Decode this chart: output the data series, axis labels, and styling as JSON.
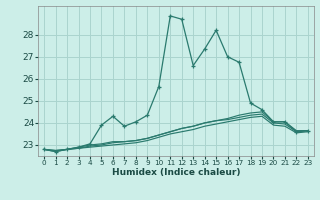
{
  "xlabel": "Humidex (Indice chaleur)",
  "x": [
    0,
    1,
    2,
    3,
    4,
    5,
    6,
    7,
    8,
    9,
    10,
    11,
    12,
    13,
    14,
    15,
    16,
    17,
    18,
    19,
    20,
    21,
    22,
    23
  ],
  "line_main": [
    22.8,
    22.7,
    22.8,
    22.9,
    23.05,
    23.9,
    24.3,
    23.85,
    24.05,
    24.35,
    25.65,
    28.85,
    28.7,
    26.6,
    27.35,
    28.2,
    27.0,
    26.75,
    24.9,
    24.6,
    24.05,
    24.05,
    23.6,
    23.65
  ],
  "line_avg1": [
    22.8,
    22.7,
    22.8,
    22.9,
    23.0,
    23.05,
    23.15,
    23.15,
    23.2,
    23.3,
    23.45,
    23.6,
    23.75,
    23.85,
    24.0,
    24.1,
    24.2,
    24.35,
    24.45,
    24.5,
    24.05,
    24.05,
    23.65,
    23.65
  ],
  "line_avg2": [
    22.8,
    22.75,
    22.8,
    22.85,
    22.95,
    23.0,
    23.1,
    23.15,
    23.2,
    23.3,
    23.45,
    23.6,
    23.75,
    23.85,
    24.0,
    24.1,
    24.15,
    24.25,
    24.35,
    24.4,
    24.0,
    23.95,
    23.6,
    23.65
  ],
  "line_avg3": [
    22.8,
    22.75,
    22.8,
    22.85,
    22.9,
    22.95,
    23.0,
    23.05,
    23.1,
    23.2,
    23.35,
    23.5,
    23.6,
    23.7,
    23.85,
    23.95,
    24.05,
    24.15,
    24.25,
    24.3,
    23.9,
    23.85,
    23.55,
    23.6
  ],
  "bg_color": "#cceee8",
  "grid_color": "#aad4ce",
  "line_color": "#2a7a6e",
  "ylim": [
    22.5,
    29.3
  ],
  "yticks": [
    23,
    24,
    25,
    26,
    27,
    28
  ],
  "xlim": [
    -0.5,
    23.5
  ]
}
